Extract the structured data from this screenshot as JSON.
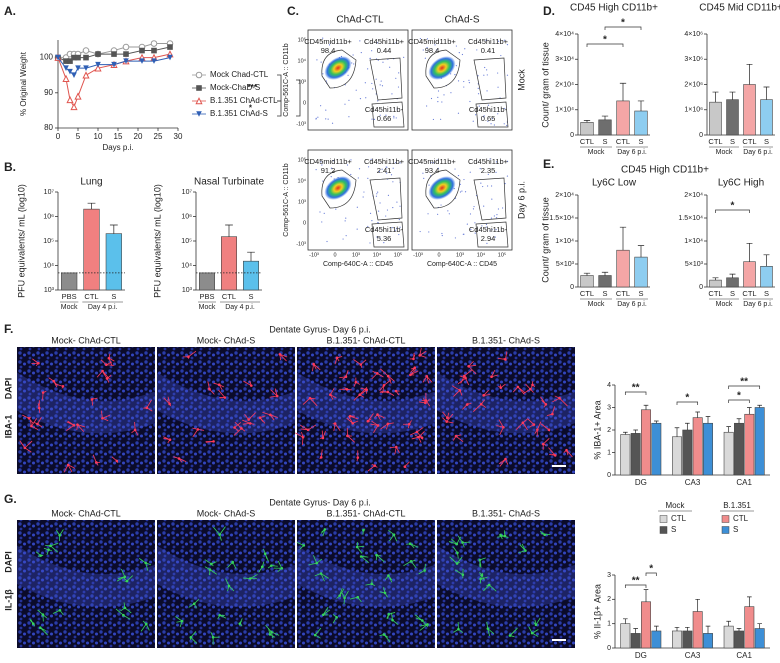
{
  "chart_data": [
    {
      "type": "line",
      "xlabel": "Days p.i.",
      "ylabel": "% Original Weight",
      "x": [
        0,
        2,
        3,
        4,
        5,
        7,
        10,
        14,
        17,
        21,
        24,
        28
      ],
      "xlim": [
        0,
        30
      ],
      "xticks": [
        0,
        5,
        10,
        15,
        20,
        25,
        30
      ],
      "ylim": [
        80,
        105
      ],
      "yticks": [
        80,
        90,
        100
      ],
      "series": [
        {
          "name": "Mock Chad-CTL",
          "color": "#9a9a9a",
          "marker": "circle",
          "values": [
            100,
            100,
            101,
            101,
            101,
            102,
            101,
            102,
            103,
            103,
            104,
            104
          ]
        },
        {
          "name": "Mock-ChaD-S",
          "color": "#555555",
          "marker": "square",
          "values": [
            100,
            99,
            99,
            100,
            100,
            100,
            101,
            101,
            101,
            102,
            102,
            103
          ]
        },
        {
          "name": "B.1.351 ChAd-CTL",
          "color": "#e0554f",
          "marker": "triangle",
          "values": [
            100,
            94,
            88,
            86,
            89,
            95,
            97,
            98,
            99,
            100,
            100,
            101
          ]
        },
        {
          "name": "B.1.351 ChAd-S",
          "color": "#2f5fb5",
          "marker": "triangle-down",
          "values": [
            100,
            97,
            96,
            95,
            97,
            97,
            98,
            98,
            99,
            99,
            99,
            100
          ]
        }
      ],
      "annotations": [
        "***",
        "***",
        "*"
      ]
    },
    {
      "type": "bar",
      "title": "Lung",
      "ylabel": "PFU equivalents/ mL (log10)",
      "log_scale": true,
      "groups": [
        {
          "name": "Mock",
          "categories": [
            "PBS"
          ]
        },
        {
          "name": "Day 4 p.i.",
          "categories": [
            "CTL",
            "S"
          ]
        }
      ],
      "values": [
        5000,
        2000000,
        200000
      ],
      "errors": [
        0,
        1500000,
        250000
      ],
      "colors": [
        "#8c8c8c",
        "#f08080",
        "#5bc0eb"
      ],
      "detection_limit": 5000,
      "ylim": [
        1000,
        10000000
      ],
      "yticks": [
        {
          "value": 1000,
          "label": "10³"
        },
        {
          "value": 10000,
          "label": "10⁴"
        },
        {
          "value": 100000,
          "label": "10⁵"
        },
        {
          "value": 1000000,
          "label": "10⁶"
        },
        {
          "value": 10000000,
          "label": "10⁷"
        }
      ]
    },
    {
      "type": "bar",
      "title": "Nasal Turbinate",
      "ylabel": "PFU equivalents/ mL (log10)",
      "log_scale": true,
      "groups": [
        {
          "name": "Mock",
          "categories": [
            "PBS"
          ]
        },
        {
          "name": "Day 4 p.i.",
          "categories": [
            "CTL",
            "S"
          ]
        }
      ],
      "values": [
        5000,
        150000,
        15000
      ],
      "errors": [
        0,
        300000,
        20000
      ],
      "colors": [
        "#8c8c8c",
        "#f08080",
        "#5bc0eb"
      ],
      "detection_limit": 5000,
      "ylim": [
        1000,
        10000000
      ],
      "yticks": [
        {
          "value": 1000,
          "label": "10³"
        },
        {
          "value": 10000,
          "label": "10⁴"
        },
        {
          "value": 100000,
          "label": "10⁵"
        },
        {
          "value": 1000000,
          "label": "10⁶"
        },
        {
          "value": 10000000,
          "label": "10⁷"
        }
      ]
    },
    {
      "type": "bar",
      "title": "CD45 High CD11b+",
      "groups": [
        {
          "name": "Mock",
          "categories": [
            "CTL",
            "S"
          ]
        },
        {
          "name": "Day 6 p.i.",
          "categories": [
            "CTL",
            "S"
          ]
        }
      ],
      "values": [
        5000,
        6000,
        13500,
        9500
      ],
      "errors": [
        800,
        1500,
        7000,
        4000
      ],
      "colors": [
        "#c8c8c8",
        "#6e6e6e",
        "#f4a6a6",
        "#8ecdf0"
      ],
      "ylim": [
        0,
        40000
      ],
      "yticks": [
        0,
        {
          "value": 10000,
          "label": "1×10⁴"
        },
        {
          "value": 20000,
          "label": "2×10⁴"
        },
        {
          "value": 30000,
          "label": "3×10⁴"
        },
        {
          "value": 40000,
          "label": "4×10⁴"
        }
      ],
      "annotations": [
        "*",
        "*"
      ]
    },
    {
      "type": "bar",
      "title": "CD45 Mid CD11b+",
      "groups": [
        {
          "name": "Mock",
          "categories": [
            "CTL",
            "S"
          ]
        },
        {
          "name": "Day 6 p.i.",
          "categories": [
            "CTL",
            "S"
          ]
        }
      ],
      "values": [
        1300000,
        1400000,
        2000000,
        1400000
      ],
      "errors": [
        400000,
        300000,
        800000,
        500000
      ],
      "colors": [
        "#c8c8c8",
        "#6e6e6e",
        "#f4a6a6",
        "#8ecdf0"
      ],
      "ylim": [
        0,
        4000000
      ],
      "yticks": [
        0,
        {
          "value": 1000000,
          "label": "1×10⁶"
        },
        {
          "value": 2000000,
          "label": "2×10⁶"
        },
        {
          "value": 3000000,
          "label": "3×10⁶"
        },
        {
          "value": 4000000,
          "label": "4×10⁶"
        }
      ]
    },
    {
      "type": "bar",
      "title": "Ly6C Low",
      "groups": [
        {
          "name": "Mock",
          "categories": [
            "CTL",
            "S"
          ]
        },
        {
          "name": "Day 6 p.i.",
          "categories": [
            "CTL",
            "S"
          ]
        }
      ],
      "values": [
        2500,
        2500,
        8000,
        6500
      ],
      "errors": [
        500,
        700,
        5000,
        2500
      ],
      "colors": [
        "#c8c8c8",
        "#6e6e6e",
        "#f4a6a6",
        "#8ecdf0"
      ],
      "ylim": [
        0,
        20000
      ],
      "yticks": [
        0,
        {
          "value": 5000,
          "label": "5×10³"
        },
        {
          "value": 10000,
          "label": "1×10⁴"
        },
        {
          "value": 15000,
          "label": "1.5×10⁴"
        },
        {
          "value": 20000,
          "label": "2×10⁴"
        }
      ]
    },
    {
      "type": "bar",
      "title": "Ly6C High",
      "groups": [
        {
          "name": "Mock",
          "categories": [
            "CTL",
            "S"
          ]
        },
        {
          "name": "Day 6 p.i.",
          "categories": [
            "CTL",
            "S"
          ]
        }
      ],
      "values": [
        1500,
        2000,
        5500,
        4500
      ],
      "errors": [
        500,
        800,
        4000,
        2500
      ],
      "colors": [
        "#c8c8c8",
        "#6e6e6e",
        "#f4a6a6",
        "#8ecdf0"
      ],
      "ylim": [
        0,
        20000
      ],
      "yticks": [
        0,
        {
          "value": 5000,
          "label": "5×10³"
        },
        {
          "value": 10000,
          "label": "1×10⁴"
        },
        {
          "value": 15000,
          "label": "1.5×10⁴"
        },
        {
          "value": 20000,
          "label": "2×10⁴"
        }
      ],
      "annotations": [
        "*"
      ]
    },
    {
      "type": "bar",
      "ylabel": "% IBA-1+ Area",
      "categories": [
        "DG",
        "CA3",
        "CA1"
      ],
      "series": [
        {
          "color": "#d9d9d9",
          "values": [
            1.8,
            1.7,
            1.9
          ],
          "errors": [
            0.1,
            0.4,
            0.25
          ]
        },
        {
          "color": "#555555",
          "values": [
            1.85,
            2.0,
            2.3
          ],
          "errors": [
            0.15,
            0.3,
            0.2
          ]
        },
        {
          "color": "#f08c8c",
          "values": [
            2.9,
            2.55,
            2.7
          ],
          "errors": [
            0.2,
            0.25,
            0.3
          ]
        },
        {
          "color": "#3d8fd6",
          "values": [
            2.3,
            2.3,
            3.0
          ],
          "errors": [
            0.1,
            0.3,
            0.1
          ]
        }
      ],
      "ylim": [
        0,
        4
      ],
      "yticks": [
        0,
        1,
        2,
        3,
        4
      ],
      "annotations": [
        "**",
        "*",
        "**",
        "*"
      ]
    },
    {
      "type": "bar",
      "ylabel": "% Il-1β+ Area",
      "categories": [
        "DG",
        "CA3",
        "CA1"
      ],
      "series": [
        {
          "color": "#d9d9d9",
          "values": [
            1.0,
            0.7,
            0.9
          ],
          "errors": [
            0.2,
            0.15,
            0.2
          ]
        },
        {
          "color": "#555555",
          "values": [
            0.6,
            0.7,
            0.7
          ],
          "errors": [
            0.2,
            0.15,
            0.1
          ]
        },
        {
          "color": "#f08c8c",
          "values": [
            1.9,
            1.5,
            1.7
          ],
          "errors": [
            0.5,
            0.5,
            0.4
          ]
        },
        {
          "color": "#3d8fd6",
          "values": [
            0.7,
            0.6,
            0.8
          ],
          "errors": [
            0.2,
            0.3,
            0.2
          ]
        }
      ],
      "ylim": [
        0,
        3
      ],
      "yticks": [
        0,
        1,
        2,
        3
      ],
      "annotations": [
        "**",
        "*"
      ],
      "legend": [
        {
          "title": "Mock",
          "entries": [
            "CTL",
            "S"
          ]
        },
        {
          "title": "B.1.351",
          "entries": [
            "CTL",
            "S"
          ]
        }
      ]
    }
  ],
  "figure": {
    "panel_labels": [
      "A.",
      "B.",
      "C.",
      "D.",
      "E.",
      "F.",
      "G."
    ],
    "ylabel_D": "Count/ gram of tissue",
    "E_title": "CD45 High CD11b+",
    "ylabel_E": "Count/ gram of tissue",
    "flow": {
      "columns": [
        "ChAd-CTL",
        "ChAd-S"
      ],
      "rows": [
        "Mock",
        "Day 6 p.i."
      ],
      "y_axis": "Comp-561C-A :: CD11b",
      "x_axis": "Comp-640C-A :: CD45",
      "ticks": [
        "-10³",
        "0",
        "10³",
        "10⁴",
        "10⁵"
      ],
      "plots": [
        {
          "gates": [
            {
              "name": "CD45mid11b+",
              "value": 98.4
            },
            {
              "name": "Cd45hi11b+",
              "value": 0.44
            },
            {
              "name": "Cd45hi11b-",
              "value": 0.66
            }
          ]
        },
        {
          "gates": [
            {
              "name": "CD45mid11b+",
              "value": 98.4
            },
            {
              "name": "Cd45hi11b+",
              "value": 0.41
            },
            {
              "name": "Cd45hi11b-",
              "value": 0.65
            }
          ]
        },
        {
          "gates": [
            {
              "name": "CD45mid11b+",
              "value": 91.2
            },
            {
              "name": "Cd45hi11b+",
              "value": 2.41
            },
            {
              "name": "Cd45hi11b-",
              "value": 5.36
            }
          ]
        },
        {
          "gates": [
            {
              "name": "CD45mid11b+",
              "value": 93.4
            },
            {
              "name": "Cd45hi11b+",
              "value": 2.35
            },
            {
              "name": "Cd45hi11b-",
              "value": 2.94
            }
          ]
        }
      ]
    },
    "F": {
      "title": "Dentate Gyrus- Day 6 p.i.",
      "images": [
        "Mock- ChAd-CTL",
        "Mock- ChAd-S",
        "B.1.351- ChAd-CTL",
        "B.1.351- ChAd-S"
      ],
      "stain": "IBA-1",
      "counterstain": "DAPI"
    },
    "G": {
      "title": "Dentate Gyrus- Day 6 p.i.",
      "images": [
        "Mock- ChAd-CTL",
        "Mock- ChAd-S",
        "B.1.351- ChAd-CTL",
        "B.1.351- ChAd-S"
      ],
      "stain": "IL-1β",
      "counterstain": "DAPI"
    }
  }
}
